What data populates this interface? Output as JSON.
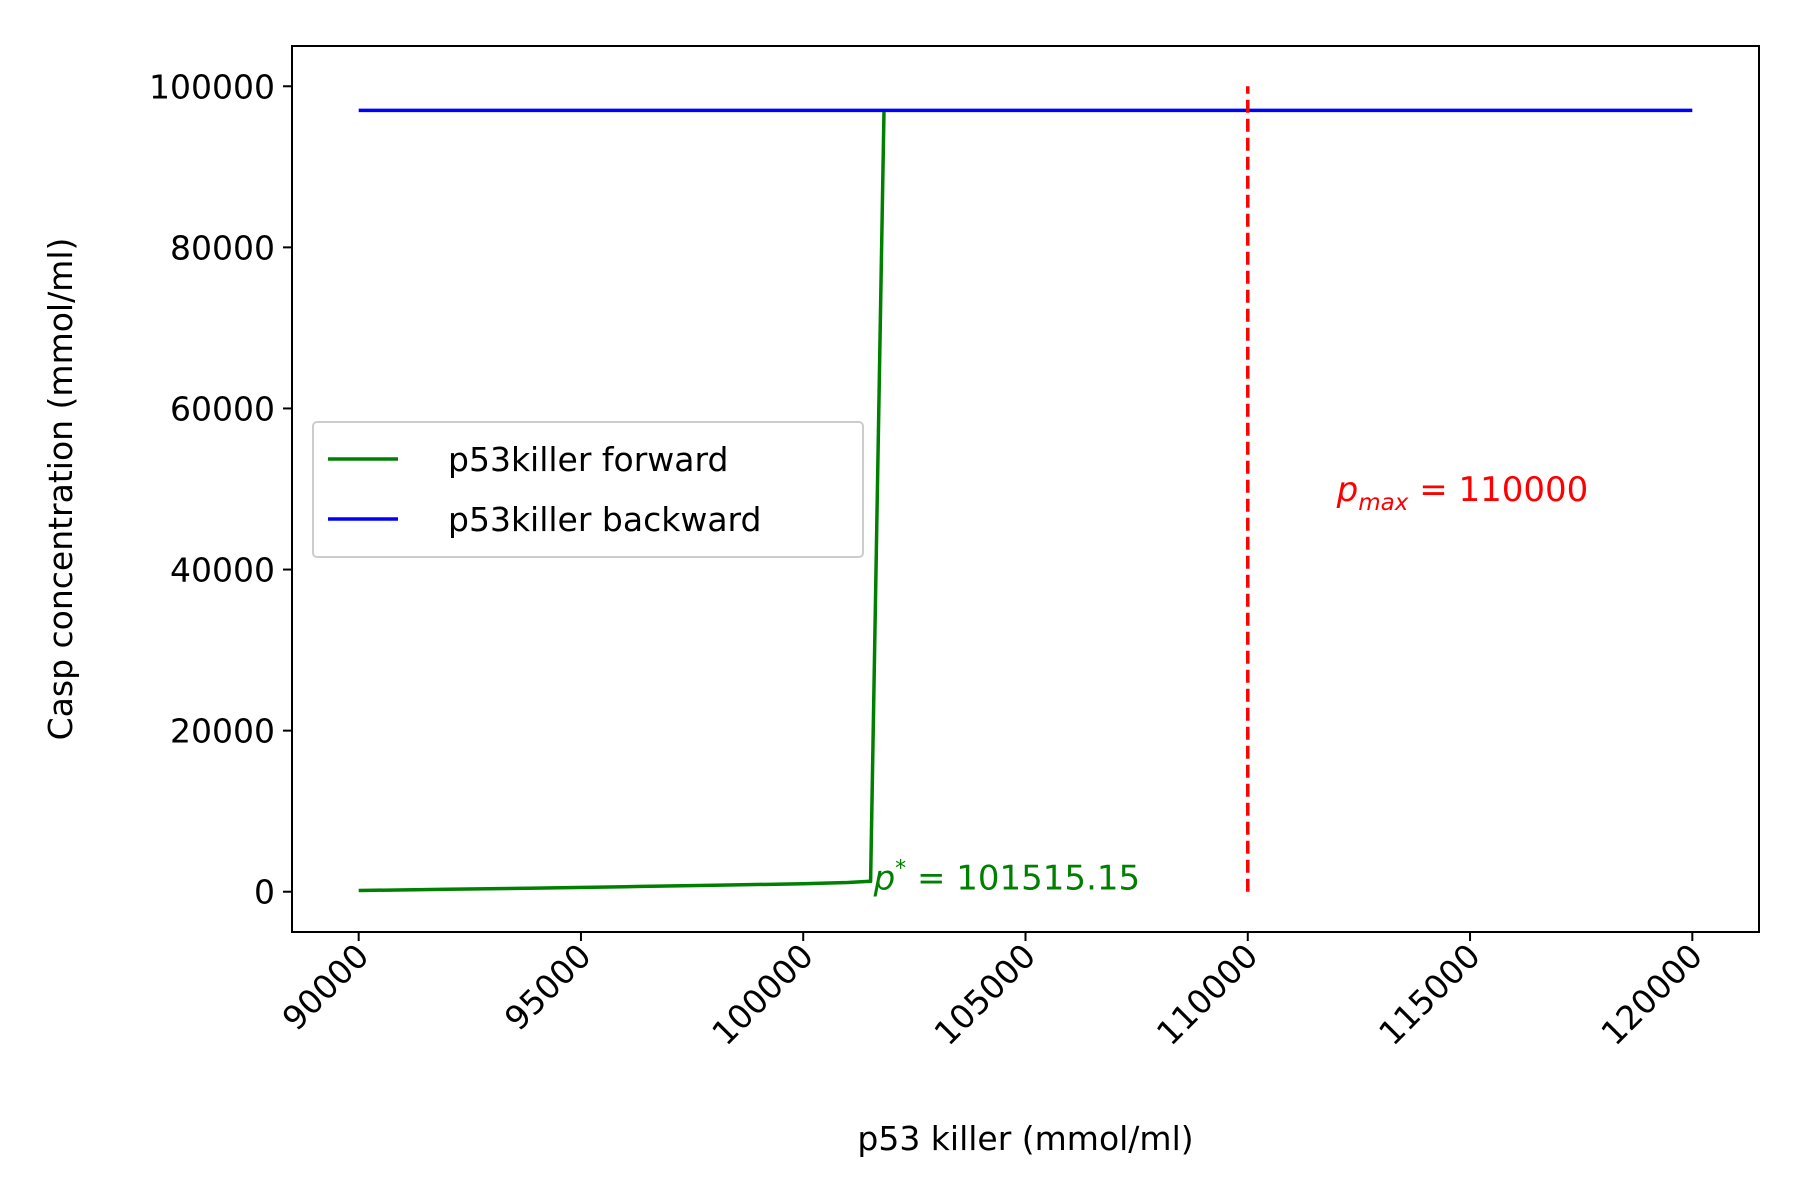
{
  "chart_data": {
    "type": "line",
    "xlabel": "p53 killer (mmol/ml)",
    "ylabel": "Casp concentration (mmol/ml)",
    "xlim": [
      88500,
      121500
    ],
    "ylim": [
      -5000,
      105000
    ],
    "x_ticks": [
      90000,
      95000,
      100000,
      105000,
      110000,
      115000,
      120000
    ],
    "x_tick_labels": [
      "90000",
      "95000",
      "100000",
      "105000",
      "110000",
      "115000",
      "120000"
    ],
    "y_ticks": [
      0,
      20000,
      40000,
      60000,
      80000,
      100000
    ],
    "y_tick_labels": [
      "0",
      "20000",
      "40000",
      "60000",
      "80000",
      "100000"
    ],
    "x_tick_rotation_deg": 45,
    "grid": false,
    "legend_position": "center-left",
    "series": [
      {
        "name": "p53killer forward",
        "color": "#008000",
        "x": [
          90000,
          92000,
          94000,
          96000,
          98000,
          100000,
          101000,
          101515.15,
          101818
        ],
        "y": [
          150,
          300,
          450,
          620,
          800,
          1000,
          1150,
          1300,
          97000
        ]
      },
      {
        "name": "p53killer backward",
        "color": "#0000ff",
        "x": [
          90000,
          120000
        ],
        "y": [
          97000,
          97000
        ]
      }
    ],
    "reference_lines": [
      {
        "orientation": "vertical",
        "x": 110000,
        "y_range": [
          0,
          100000
        ],
        "color": "#ff0000",
        "style": "dashed"
      }
    ],
    "annotations": [
      {
        "prefix": "p",
        "superscript": "*",
        "rest": " = 101515.15",
        "x": 101515.15,
        "y": 0,
        "color": "#008000"
      },
      {
        "prefix": "p",
        "subscript": "max",
        "rest": " = 110000",
        "x": 112000,
        "y": 50000,
        "color": "#ff0000"
      }
    ]
  }
}
